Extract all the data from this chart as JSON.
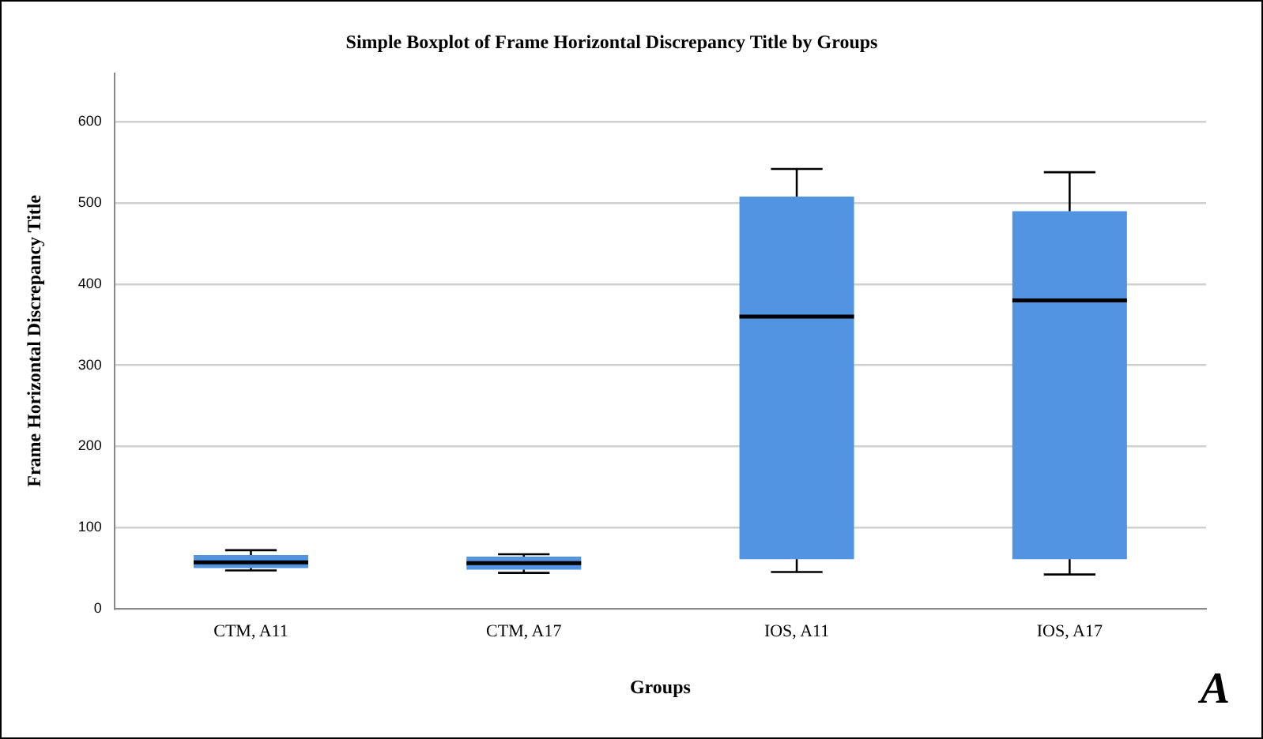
{
  "chart_data": {
    "type": "box",
    "title": "Simple Boxplot of Frame Horizontal Discrepancy Title by Groups",
    "xlabel": "Groups",
    "ylabel": "Frame Horizontal Discrepancy Title",
    "categories": [
      "CTM, A11",
      "CTM, A17",
      "IOS, A11",
      "IOS, A17"
    ],
    "boxes": [
      {
        "low": 47,
        "q1": 50,
        "median": 57,
        "q3": 66,
        "high": 72
      },
      {
        "low": 44,
        "q1": 48,
        "median": 56,
        "q3": 64,
        "high": 67
      },
      {
        "low": 45,
        "q1": 61,
        "median": 360,
        "q3": 508,
        "high": 542
      },
      {
        "low": 42,
        "q1": 61,
        "median": 380,
        "q3": 490,
        "high": 538
      }
    ],
    "color": "#5294e2",
    "ylim": [
      0,
      660
    ],
    "yticks": [
      0,
      100,
      200,
      300,
      400,
      500,
      600
    ],
    "grid": "y",
    "legend": false,
    "annotations": [
      "A"
    ]
  }
}
